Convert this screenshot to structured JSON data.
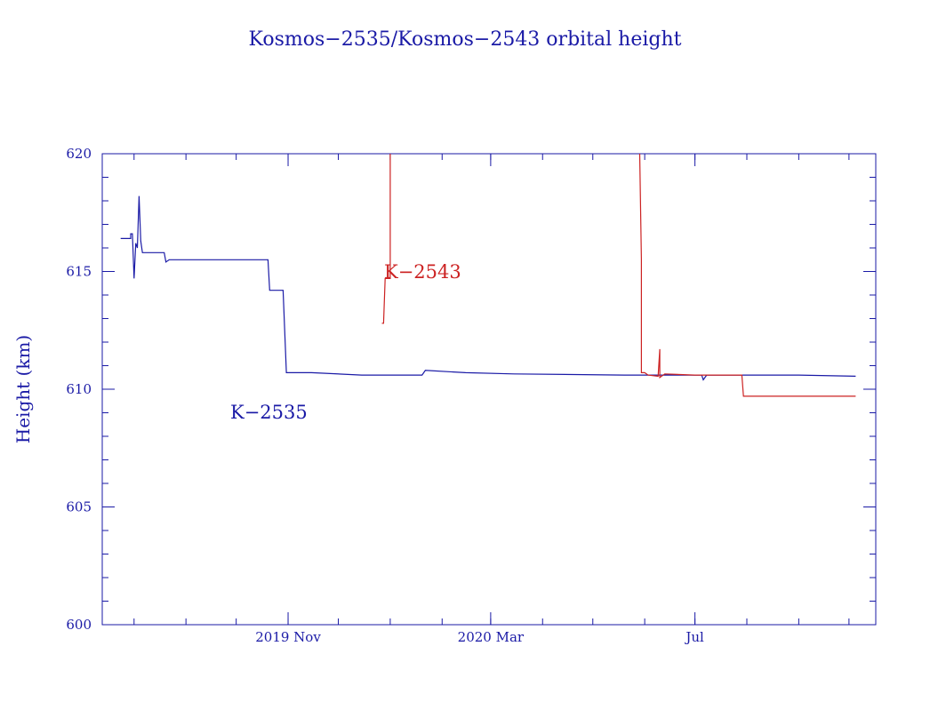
{
  "chart_data": {
    "type": "line",
    "title": "Kosmos−2535/Kosmos−2543 orbital height",
    "ylabel": "Height (km)",
    "xlabel": "",
    "xlim": [
      "2019-07-13",
      "2020-10-17"
    ],
    "ylim": [
      600,
      620
    ],
    "yticks": [
      600,
      605,
      610,
      615,
      620
    ],
    "xticks": [
      {
        "date": "2019-11-01",
        "label": "2019 Nov"
      },
      {
        "date": "2020-03-01",
        "label": "2020 Mar"
      },
      {
        "date": "2020-07-01",
        "label": "Jul"
      }
    ],
    "grid": false,
    "legend": "none",
    "colors": {
      "axes": "#1a1aa6",
      "k2535": "#1a1aa6",
      "k2543": "#cc2222"
    },
    "annotations": [
      {
        "text": "K−2535",
        "series": "K-2535"
      },
      {
        "text": "K−2543",
        "series": "K-2543"
      }
    ],
    "series": [
      {
        "name": "K-2535",
        "color": "#1a1aa6",
        "points": [
          [
            "2019-07-24",
            616.4
          ],
          [
            "2019-07-30",
            616.4
          ],
          [
            "2019-07-30",
            616.6
          ],
          [
            "2019-07-31",
            616.6
          ],
          [
            "2019-08-01",
            614.7
          ],
          [
            "2019-08-02",
            616.2
          ],
          [
            "2019-08-03",
            616.0
          ],
          [
            "2019-08-04",
            618.2
          ],
          [
            "2019-08-05",
            616.3
          ],
          [
            "2019-08-06",
            615.8
          ],
          [
            "2019-08-19",
            615.8
          ],
          [
            "2019-08-20",
            615.4
          ],
          [
            "2019-08-22",
            615.5
          ],
          [
            "2019-10-12",
            615.5
          ],
          [
            "2019-10-20",
            615.5
          ],
          [
            "2019-10-21",
            614.2
          ],
          [
            "2019-10-29",
            614.2
          ],
          [
            "2019-10-31",
            610.7
          ],
          [
            "2019-11-15",
            610.7
          ],
          [
            "2019-12-15",
            610.6
          ],
          [
            "2020-01-20",
            610.6
          ],
          [
            "2020-01-22",
            610.8
          ],
          [
            "2020-02-15",
            610.7
          ],
          [
            "2020-03-15",
            610.65
          ],
          [
            "2020-05-20",
            610.6
          ],
          [
            "2020-06-15",
            610.6
          ],
          [
            "2020-07-05",
            610.6
          ],
          [
            "2020-07-06",
            610.4
          ],
          [
            "2020-07-08",
            610.6
          ],
          [
            "2020-08-01",
            610.6
          ],
          [
            "2020-09-01",
            610.6
          ],
          [
            "2020-10-05",
            610.55
          ]
        ]
      },
      {
        "name": "K-2543",
        "color": "#cc2222",
        "points": [
          [
            "2019-12-27",
            612.8
          ],
          [
            "2019-12-28",
            612.8
          ],
          [
            "2019-12-29",
            614.7
          ],
          [
            "2020-01-01",
            614.7
          ],
          [
            "2020-01-01",
            620.0
          ]
        ]
      },
      {
        "name": "K-2543",
        "color": "#cc2222",
        "points": [
          [
            "2020-05-29",
            620.0
          ],
          [
            "2020-05-30",
            615.5
          ],
          [
            "2020-05-30",
            610.7
          ],
          [
            "2020-06-01",
            610.7
          ],
          [
            "2020-06-03",
            610.6
          ],
          [
            "2020-06-09",
            610.55
          ],
          [
            "2020-06-10",
            611.7
          ],
          [
            "2020-06-10",
            610.5
          ],
          [
            "2020-06-13",
            610.65
          ],
          [
            "2020-07-01",
            610.6
          ],
          [
            "2020-07-20",
            610.6
          ],
          [
            "2020-07-29",
            610.6
          ],
          [
            "2020-07-30",
            609.7
          ],
          [
            "2020-10-05",
            609.7
          ]
        ]
      }
    ]
  }
}
